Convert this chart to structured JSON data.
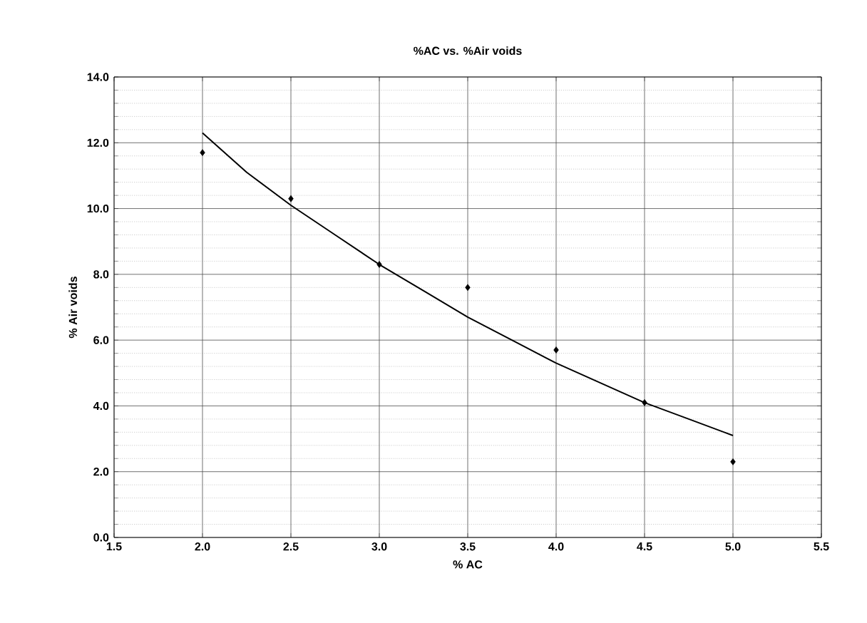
{
  "chart_data": {
    "type": "scatter",
    "title": "%AC vs. %Air voids",
    "xlabel": "% AC",
    "ylabel": "% Air voids",
    "xlim": [
      1.5,
      5.5
    ],
    "xticks": [
      {
        "value": 1.5,
        "label": "1.5"
      },
      {
        "value": 2.0,
        "label": "2.0"
      },
      {
        "value": 2.5,
        "label": "2.5"
      },
      {
        "value": 3.0,
        "label": "3.0"
      },
      {
        "value": 3.5,
        "label": "3.5"
      },
      {
        "value": 4.0,
        "label": "4.0"
      },
      {
        "value": 4.5,
        "label": "4.5"
      },
      {
        "value": 5.0,
        "label": "5.0"
      },
      {
        "value": 5.5,
        "label": "5.5"
      }
    ],
    "ylim": [
      0,
      14
    ],
    "yticks": [
      {
        "value": 0,
        "label": "0.0"
      },
      {
        "value": 2,
        "label": "2.0"
      },
      {
        "value": 4,
        "label": "4.0"
      },
      {
        "value": 6,
        "label": "6.0"
      },
      {
        "value": 8,
        "label": "8.0"
      },
      {
        "value": 10,
        "label": "10.0"
      },
      {
        "value": 12,
        "label": "12.0"
      },
      {
        "value": 14,
        "label": "14.0"
      }
    ],
    "grid": true,
    "series": [
      {
        "marker": "diamond",
        "color": "#000000",
        "x": [
          2.0,
          2.5,
          3.0,
          3.5,
          4.0,
          4.5,
          5.0
        ],
        "values": [
          11.7,
          10.3,
          8.3,
          7.6,
          5.7,
          4.1,
          2.3
        ]
      },
      {
        "type": "line",
        "marker": "none",
        "color": "#000000",
        "x": [
          2.0,
          2.25,
          2.5,
          2.75,
          3.0,
          3.25,
          3.5,
          3.75,
          4.0,
          4.25,
          4.5,
          4.75,
          5.0
        ],
        "values": [
          12.3,
          11.1,
          10.1,
          9.2,
          8.3,
          7.5,
          6.7,
          6.0,
          5.3,
          4.7,
          4.1,
          3.6,
          3.1
        ]
      }
    ]
  }
}
